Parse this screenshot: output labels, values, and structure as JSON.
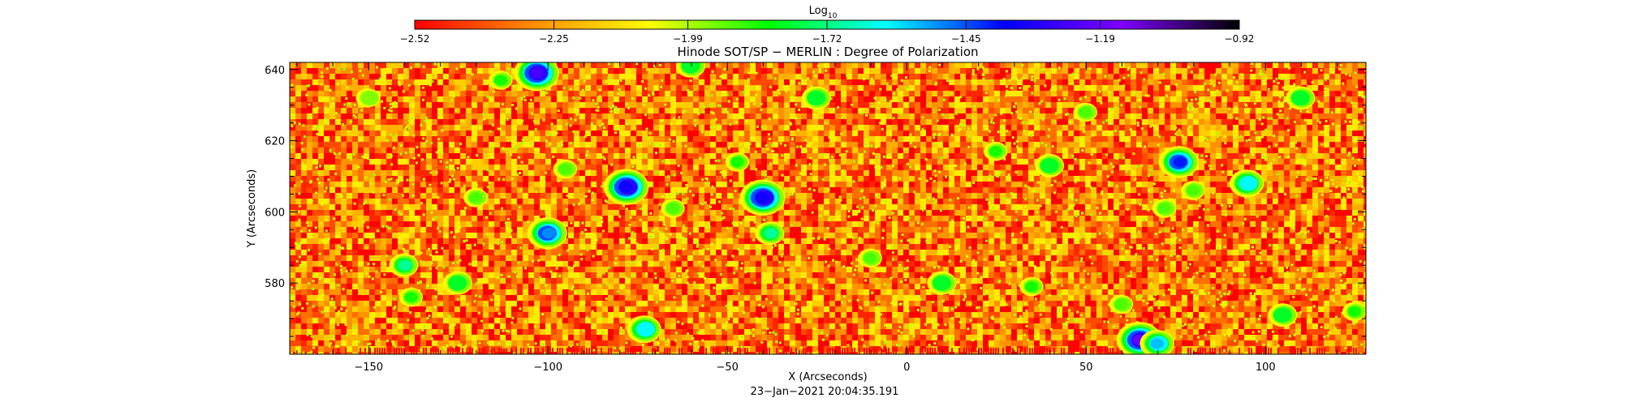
{
  "chart_data": {
    "type": "heatmap",
    "title": "Hinode SOT/SP − MERLIN : Degree of Polarization",
    "xlabel": "X (Arcseconds)",
    "ylabel": "Y (Arcseconds)",
    "timestamp": "23−Jan−2021 20:04:35.191",
    "xlim": [
      -172,
      128
    ],
    "ylim": [
      560,
      642
    ],
    "x_ticks": [
      -150,
      -100,
      -50,
      0,
      50,
      100
    ],
    "x_tick_labels": [
      "−150",
      "−100",
      "−50",
      "0",
      "50",
      "100"
    ],
    "y_ticks": [
      580,
      600,
      620,
      640
    ],
    "y_tick_labels": [
      "580",
      "600",
      "620",
      "640"
    ],
    "colorbar": {
      "label_base": "Log",
      "label_sub": "10",
      "range": [
        -2.52,
        -0.92
      ],
      "ticks": [
        -2.52,
        -2.25,
        -1.99,
        -1.72,
        -1.45,
        -1.19,
        -0.92
      ],
      "tick_labels": [
        "−2.52",
        "−2.25",
        "−1.99",
        "−1.72",
        "−1.45",
        "−1.19",
        "−0.92"
      ],
      "colors": [
        "#ff0000",
        "#ff8c00",
        "#ffff00",
        "#00ff00",
        "#00ffff",
        "#0000ff",
        "#8000ff",
        "#000000"
      ]
    },
    "background_level": -2.35,
    "features": [
      {
        "x": -150,
        "y": 632,
        "value": -1.95
      },
      {
        "x": -140,
        "y": 585,
        "value": -1.7
      },
      {
        "x": -138,
        "y": 576,
        "value": -1.85
      },
      {
        "x": -125,
        "y": 580,
        "value": -1.8
      },
      {
        "x": -120,
        "y": 604,
        "value": -1.9
      },
      {
        "x": -113,
        "y": 637,
        "value": -1.85
      },
      {
        "x": -103,
        "y": 639,
        "value": -1.25
      },
      {
        "x": -100,
        "y": 594,
        "value": -1.5
      },
      {
        "x": -95,
        "y": 612,
        "value": -1.9
      },
      {
        "x": -78,
        "y": 607,
        "value": -1.35
      },
      {
        "x": -73,
        "y": 567,
        "value": -1.6
      },
      {
        "x": -65,
        "y": 601,
        "value": -1.9
      },
      {
        "x": -60,
        "y": 641,
        "value": -1.8
      },
      {
        "x": -47,
        "y": 614,
        "value": -1.85
      },
      {
        "x": -40,
        "y": 604,
        "value": -1.35
      },
      {
        "x": -38,
        "y": 594,
        "value": -1.7
      },
      {
        "x": -25,
        "y": 632,
        "value": -1.8
      },
      {
        "x": -10,
        "y": 587,
        "value": -1.9
      },
      {
        "x": 10,
        "y": 580,
        "value": -1.8
      },
      {
        "x": 25,
        "y": 617,
        "value": -1.85
      },
      {
        "x": 35,
        "y": 579,
        "value": -1.85
      },
      {
        "x": 40,
        "y": 613,
        "value": -1.8
      },
      {
        "x": 50,
        "y": 628,
        "value": -1.9
      },
      {
        "x": 60,
        "y": 574,
        "value": -1.9
      },
      {
        "x": 65,
        "y": 564,
        "value": -1.2
      },
      {
        "x": 70,
        "y": 563,
        "value": -1.55
      },
      {
        "x": 72,
        "y": 601,
        "value": -1.9
      },
      {
        "x": 76,
        "y": 614,
        "value": -1.4
      },
      {
        "x": 80,
        "y": 606,
        "value": -1.9
      },
      {
        "x": 95,
        "y": 608,
        "value": -1.6
      },
      {
        "x": 105,
        "y": 571,
        "value": -1.8
      },
      {
        "x": 110,
        "y": 632,
        "value": -1.8
      },
      {
        "x": 125,
        "y": 572,
        "value": -1.85
      }
    ]
  }
}
